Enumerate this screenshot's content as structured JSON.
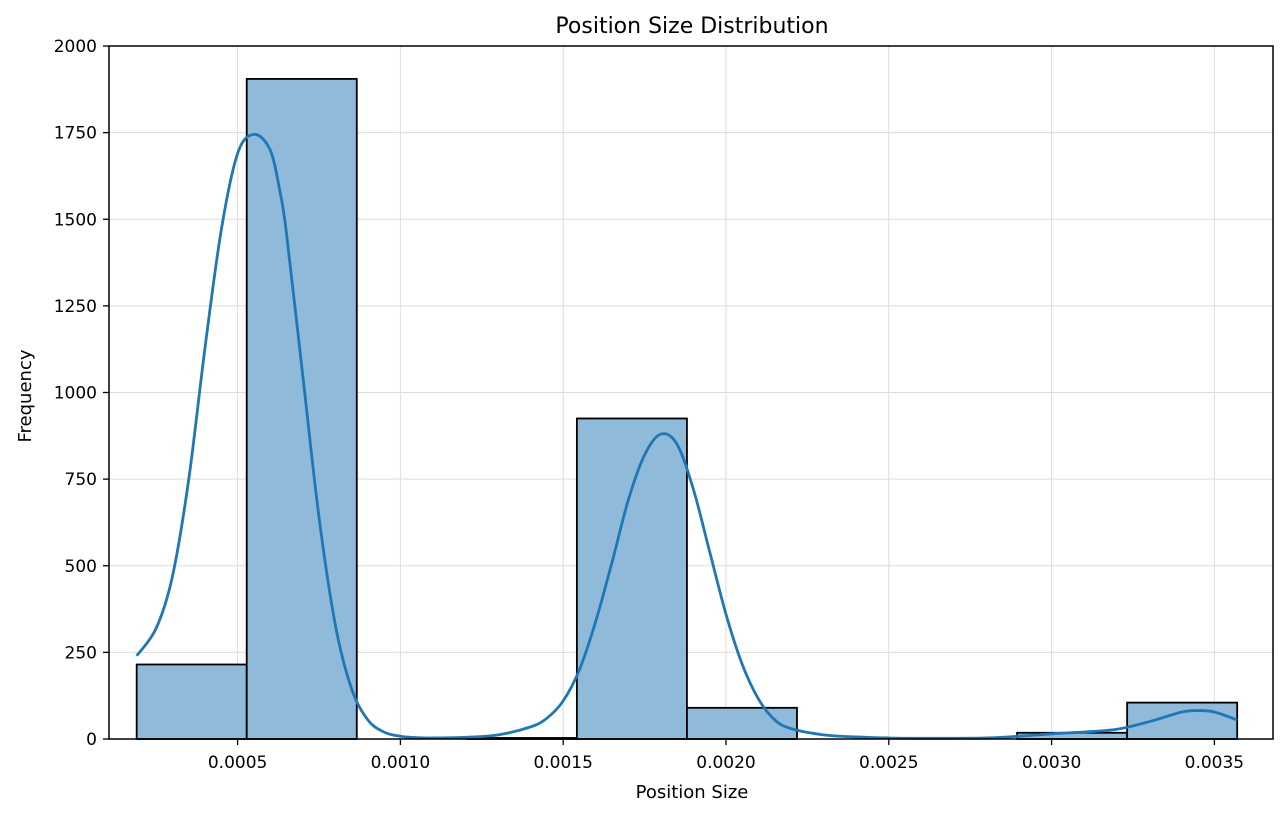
{
  "chart_data": {
    "type": "bar",
    "title": "Position Size Distribution",
    "xlabel": "Position Size",
    "ylabel": "Frequency",
    "xlim": [
      0.000105,
      0.00368
    ],
    "ylim": [
      0,
      2000
    ],
    "xticks": [
      0.0005,
      0.001,
      0.0015,
      0.002,
      0.0025,
      0.003,
      0.0035
    ],
    "xtick_labels": [
      "0.0005",
      "0.0010",
      "0.0015",
      "0.0020",
      "0.0025",
      "0.0030",
      "0.0035"
    ],
    "yticks": [
      0,
      250,
      500,
      750,
      1000,
      1250,
      1500,
      1750,
      2000
    ],
    "ytick_labels": [
      "0",
      "250",
      "500",
      "750",
      "1000",
      "1250",
      "1500",
      "1750",
      "2000"
    ],
    "grid": true,
    "bins": [
      {
        "start": 0.00019,
        "end": 0.000528,
        "count": 215
      },
      {
        "start": 0.000528,
        "end": 0.000866,
        "count": 1905
      },
      {
        "start": 0.000866,
        "end": 0.001204,
        "count": 0
      },
      {
        "start": 0.001204,
        "end": 0.001542,
        "count": 3
      },
      {
        "start": 0.001542,
        "end": 0.00188,
        "count": 925
      },
      {
        "start": 0.00188,
        "end": 0.002218,
        "count": 90
      },
      {
        "start": 0.002218,
        "end": 0.002556,
        "count": 0
      },
      {
        "start": 0.002556,
        "end": 0.002894,
        "count": 0
      },
      {
        "start": 0.002894,
        "end": 0.003232,
        "count": 18
      },
      {
        "start": 0.003232,
        "end": 0.00357,
        "count": 105
      }
    ],
    "kde": {
      "x": [
        0.00019,
        0.00025,
        0.0003,
        0.00035,
        0.0004,
        0.00045,
        0.0005,
        0.00055,
        0.0006,
        0.00063,
        0.00065,
        0.0007,
        0.00075,
        0.0008,
        0.00085,
        0.0009,
        0.00095,
        0.001,
        0.00105,
        0.0011,
        0.0012,
        0.0013,
        0.0014,
        0.00145,
        0.0015,
        0.00155,
        0.0016,
        0.00165,
        0.0017,
        0.00175,
        0.0018,
        0.00185,
        0.0019,
        0.00195,
        0.002,
        0.00205,
        0.0021,
        0.00215,
        0.0022,
        0.0023,
        0.0024,
        0.0025,
        0.0026,
        0.0027,
        0.0028,
        0.0029,
        0.003,
        0.0031,
        0.0032,
        0.0033,
        0.0034,
        0.00345,
        0.0035,
        0.00357
      ],
      "y": [
        240,
        320,
        470,
        750,
        1130,
        1470,
        1690,
        1745,
        1700,
        1580,
        1460,
        1050,
        640,
        330,
        145,
        55,
        20,
        8,
        4,
        3,
        5,
        12,
        35,
        60,
        110,
        200,
        340,
        510,
        690,
        820,
        880,
        850,
        720,
        540,
        360,
        215,
        115,
        55,
        30,
        12,
        6,
        3,
        2,
        2,
        3,
        8,
        15,
        20,
        28,
        50,
        78,
        82,
        78,
        55
      ]
    },
    "colors": {
      "bar_fill": "#8fbad9",
      "bar_edge": "#000000",
      "kde_line": "#1f77b4",
      "grid": "#dddddd"
    }
  }
}
